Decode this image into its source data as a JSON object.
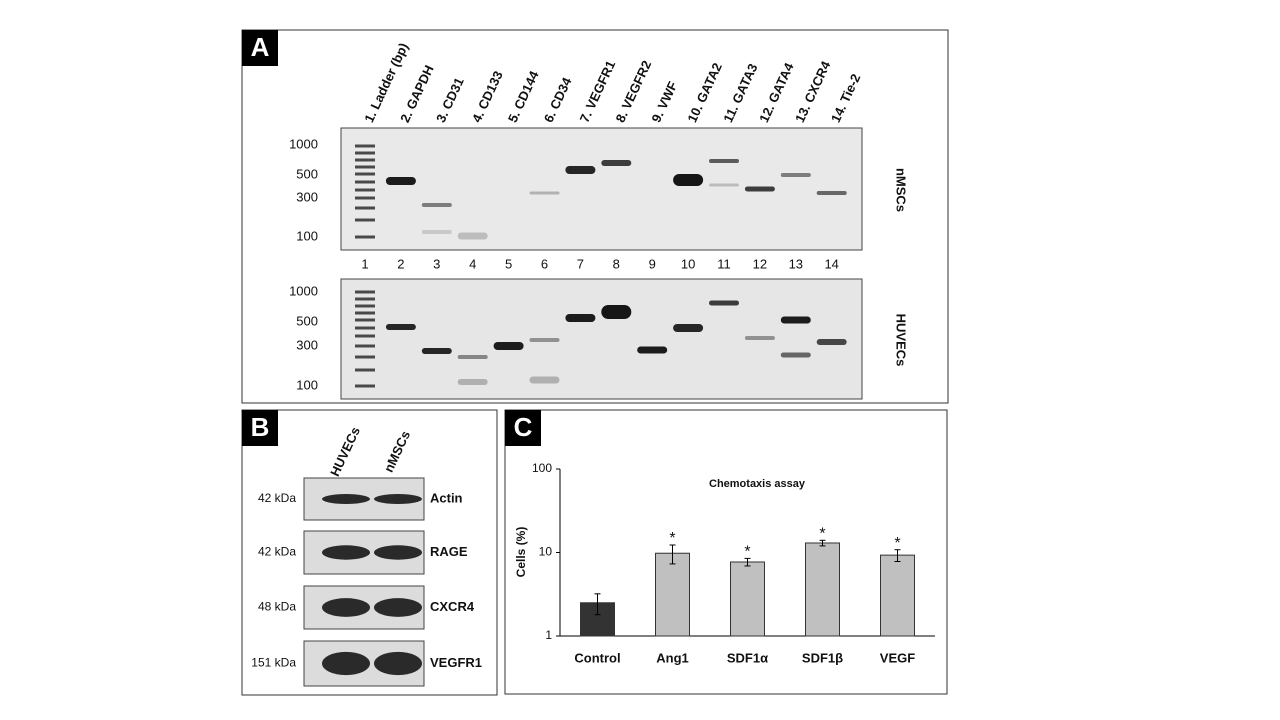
{
  "panel_a": {
    "label": "A",
    "lane_labels": [
      "1. Ladder (bp)",
      "2. GAPDH",
      "3. CD31",
      "4. CD133",
      "5. CD144",
      "6. CD34",
      "7. VEGFR1",
      "8. VEGFR2",
      "9. VWF",
      "10. GATA2",
      "11. GATA3",
      "12. GATA4",
      "13. CXCR4",
      "14. Tie-2"
    ],
    "lane_numbers": [
      1,
      2,
      3,
      4,
      5,
      6,
      7,
      8,
      9,
      10,
      11,
      12,
      13,
      14
    ],
    "size_markers": [
      "1000",
      "500",
      "300",
      "100"
    ],
    "cell_types": [
      "nMSCs",
      "HUVECs"
    ]
  },
  "panel_b": {
    "label": "B",
    "columns": [
      "HUVECs",
      "nMSCs"
    ],
    "rows": [
      {
        "size": "42 kDa",
        "protein": "Actin"
      },
      {
        "size": "42 kDa",
        "protein": "RAGE"
      },
      {
        "size": "48 kDa",
        "protein": "CXCR4"
      },
      {
        "size": "151 kDa",
        "protein": "VEGFR1"
      }
    ]
  },
  "panel_c": {
    "label": "C"
  },
  "chart_data": {
    "type": "bar",
    "title": "Chemotaxis assay",
    "y_label": "Cells (%)",
    "categories": [
      "Control",
      "Ang1",
      "SDF1α",
      "SDF1β",
      "VEGF"
    ],
    "values": [
      2.5,
      9.8,
      7.7,
      13,
      9.3
    ],
    "errors": [
      0.7,
      2.5,
      0.8,
      1,
      1.5
    ],
    "annotations": [
      null,
      "*",
      "*",
      "*",
      "*"
    ],
    "colors": [
      "#333333",
      "#c0c0c0",
      "#c0c0c0",
      "#c0c0c0",
      "#c0c0c0"
    ],
    "log_scale": true,
    "ylim": [
      1,
      100
    ],
    "yticks": [
      1,
      10,
      100
    ]
  }
}
